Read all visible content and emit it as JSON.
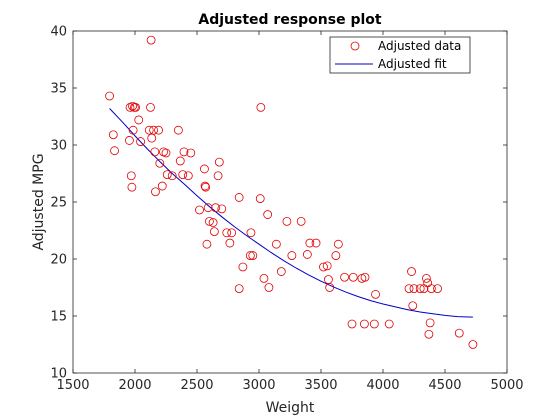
{
  "chart_data": {
    "type": "scatter",
    "title": "Adjusted response plot",
    "xlabel": "Weight",
    "ylabel": "Adjusted MPG",
    "xlim": [
      1500,
      5000
    ],
    "ylim": [
      10,
      40
    ],
    "xticks": [
      "1500",
      "2000",
      "2500",
      "3000",
      "3500",
      "4000",
      "4500",
      "5000"
    ],
    "yticks": [
      "10",
      "15",
      "20",
      "25",
      "30",
      "35",
      "40"
    ],
    "grid": false,
    "legend_position": "top-right",
    "legend": [
      "Adjusted data",
      "Adjusted fit"
    ],
    "series": [
      {
        "name": "Adjusted data",
        "type": "scatter",
        "marker": "circle",
        "color": "#e00000",
        "points": [
          [
            1795,
            34.3
          ],
          [
            1825,
            30.9
          ],
          [
            1835,
            29.5
          ],
          [
            1955,
            30.4
          ],
          [
            1960,
            33.3
          ],
          [
            1970,
            27.3
          ],
          [
            1975,
            26.3
          ],
          [
            1980,
            33.4
          ],
          [
            1985,
            31.3
          ],
          [
            1995,
            33.3
          ],
          [
            2005,
            33.3
          ],
          [
            2030,
            32.2
          ],
          [
            2045,
            30.3
          ],
          [
            2115,
            31.3
          ],
          [
            2125,
            33.3
          ],
          [
            2130,
            39.2
          ],
          [
            2135,
            30.6
          ],
          [
            2150,
            31.3
          ],
          [
            2160,
            29.4
          ],
          [
            2165,
            25.9
          ],
          [
            2190,
            31.3
          ],
          [
            2200,
            28.4
          ],
          [
            2220,
            26.4
          ],
          [
            2230,
            29.4
          ],
          [
            2250,
            29.3
          ],
          [
            2260,
            27.4
          ],
          [
            2300,
            27.3
          ],
          [
            2350,
            31.3
          ],
          [
            2365,
            28.6
          ],
          [
            2385,
            27.4
          ],
          [
            2395,
            29.4
          ],
          [
            2430,
            27.3
          ],
          [
            2450,
            29.3
          ],
          [
            2520,
            24.3
          ],
          [
            2560,
            27.9
          ],
          [
            2565,
            26.4
          ],
          [
            2570,
            26.3
          ],
          [
            2580,
            21.3
          ],
          [
            2590,
            24.5
          ],
          [
            2600,
            23.3
          ],
          [
            2630,
            23.2
          ],
          [
            2640,
            22.4
          ],
          [
            2650,
            24.5
          ],
          [
            2670,
            27.3
          ],
          [
            2680,
            28.5
          ],
          [
            2700,
            24.4
          ],
          [
            2740,
            22.3
          ],
          [
            2765,
            21.4
          ],
          [
            2780,
            22.3
          ],
          [
            2840,
            17.4
          ],
          [
            2840,
            25.4
          ],
          [
            2870,
            19.3
          ],
          [
            2930,
            20.3
          ],
          [
            2935,
            22.3
          ],
          [
            2950,
            20.3
          ],
          [
            3010,
            25.3
          ],
          [
            3015,
            33.3
          ],
          [
            3040,
            18.3
          ],
          [
            3070,
            23.9
          ],
          [
            3080,
            17.5
          ],
          [
            3140,
            21.3
          ],
          [
            3180,
            18.9
          ],
          [
            3225,
            23.3
          ],
          [
            3265,
            20.3
          ],
          [
            3340,
            23.3
          ],
          [
            3390,
            20.4
          ],
          [
            3410,
            21.4
          ],
          [
            3460,
            21.4
          ],
          [
            3520,
            19.3
          ],
          [
            3550,
            19.4
          ],
          [
            3560,
            18.2
          ],
          [
            3570,
            17.5
          ],
          [
            3620,
            20.3
          ],
          [
            3640,
            21.3
          ],
          [
            3690,
            18.4
          ],
          [
            3750,
            14.3
          ],
          [
            3760,
            18.4
          ],
          [
            3830,
            18.3
          ],
          [
            3850,
            14.3
          ],
          [
            3855,
            18.4
          ],
          [
            3930,
            14.3
          ],
          [
            3940,
            16.9
          ],
          [
            4050,
            14.3
          ],
          [
            4210,
            17.4
          ],
          [
            4230,
            18.9
          ],
          [
            4240,
            15.9
          ],
          [
            4250,
            17.4
          ],
          [
            4300,
            17.4
          ],
          [
            4330,
            17.4
          ],
          [
            4350,
            18.3
          ],
          [
            4360,
            17.9
          ],
          [
            4370,
            13.4
          ],
          [
            4380,
            14.4
          ],
          [
            4390,
            17.4
          ],
          [
            4440,
            17.4
          ],
          [
            4615,
            13.5
          ],
          [
            4725,
            12.5
          ]
        ]
      },
      {
        "name": "Adjusted fit",
        "type": "line",
        "color": "#0000c8",
        "x": [
          1795,
          1900,
          2000,
          2100,
          2200,
          2300,
          2400,
          2500,
          2600,
          2700,
          2800,
          2900,
          3000,
          3100,
          3200,
          3300,
          3400,
          3500,
          3600,
          3700,
          3800,
          3900,
          4000,
          4100,
          4200,
          4300,
          4400,
          4500,
          4600,
          4725
        ],
        "y": [
          33.2,
          32.0,
          30.8,
          29.65,
          28.55,
          27.5,
          26.55,
          25.55,
          24.6,
          23.7,
          22.85,
          22.05,
          21.3,
          20.55,
          19.85,
          19.2,
          18.6,
          18.05,
          17.55,
          17.1,
          16.7,
          16.35,
          16.05,
          15.8,
          15.55,
          15.35,
          15.2,
          15.05,
          14.95,
          14.9
        ]
      }
    ]
  }
}
